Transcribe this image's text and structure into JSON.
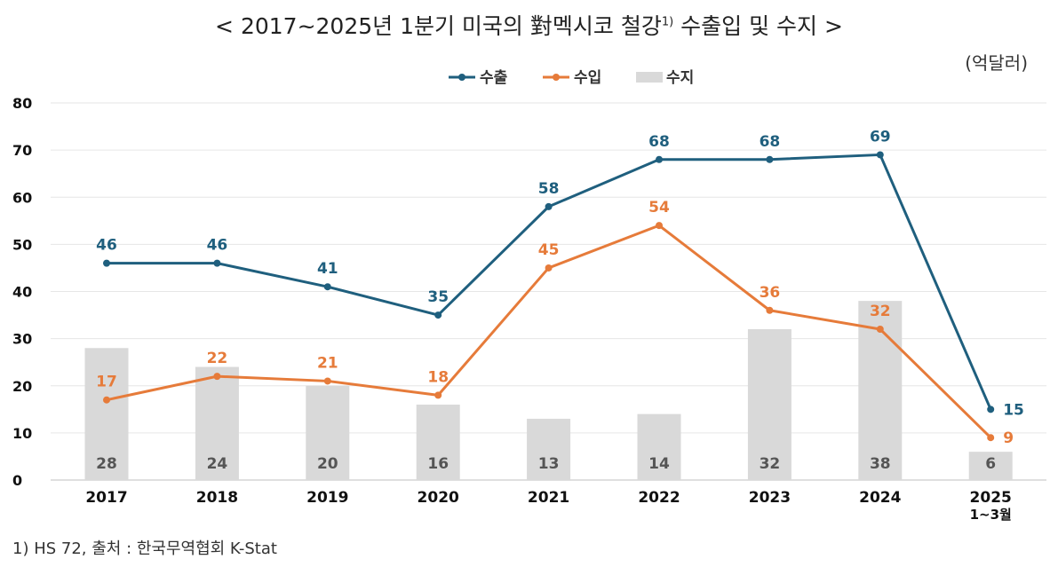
{
  "title": {
    "text": "< 2017~2025년 1분기 미국의 對멕시코 철강",
    "note_mark": "1)",
    "suffix": " 수출입 및 수지 >"
  },
  "unit": "(억달러)",
  "footnote": "1) HS 72, 출처 : 한국무역협회 K-Stat",
  "colors": {
    "export": "#1f5f7e",
    "import": "#e67b3a",
    "balance": "#d9d9d9",
    "grid": "#e6e6e6",
    "axis_text": "#111111",
    "balance_label": "#555555"
  },
  "chart_data": {
    "type": "bar+line",
    "categories": [
      "2017",
      "2018",
      "2019",
      "2020",
      "2021",
      "2022",
      "2023",
      "2024",
      "2025\n1~3월"
    ],
    "ylim": [
      0,
      80
    ],
    "yticks": [
      0,
      10,
      20,
      30,
      40,
      50,
      60,
      70,
      80
    ],
    "grid": true,
    "legend_position": "top-center",
    "series": [
      {
        "name": "수출",
        "type": "line",
        "color": "#1f5f7e",
        "values": [
          46,
          46,
          41,
          35,
          58,
          68,
          68,
          69,
          15
        ]
      },
      {
        "name": "수입",
        "type": "line",
        "color": "#e67b3a",
        "values": [
          17,
          22,
          21,
          18,
          45,
          54,
          36,
          32,
          9
        ]
      },
      {
        "name": "수지",
        "type": "bar",
        "color": "#d9d9d9",
        "values": [
          28,
          24,
          20,
          16,
          13,
          14,
          32,
          38,
          6
        ]
      }
    ]
  }
}
